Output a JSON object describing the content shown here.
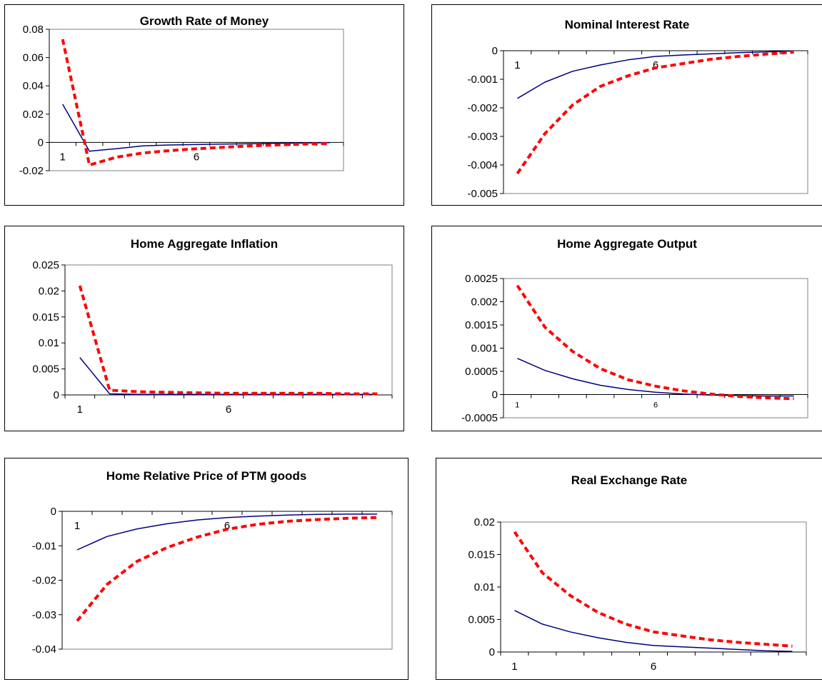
{
  "colors": {
    "solid": "#000080",
    "dashed": "#ff0000",
    "axis": "#000000",
    "plot_border": "#808080"
  },
  "chart_data": [
    {
      "type": "line",
      "title": "Growth Rate of Money",
      "x": [
        1,
        2,
        3,
        4,
        5,
        6,
        7,
        8,
        9,
        10,
        11
      ],
      "category_labels": [
        {
          "x": 1,
          "text": "1"
        },
        {
          "x": 6,
          "text": "6"
        }
      ],
      "ylim": [
        -0.02,
        0.08
      ],
      "yticks": [
        "0.08",
        "0.06",
        "0.04",
        "0.02",
        "0",
        "-0.02"
      ],
      "series": [
        {
          "style": "solid",
          "values": [
            0.027,
            -0.0062,
            -0.0045,
            -0.0025,
            -0.0018,
            -0.0015,
            -0.0012,
            -0.0009,
            -0.0006,
            -0.0004,
            -0.0002
          ]
        },
        {
          "style": "dashed",
          "values": [
            0.073,
            -0.016,
            -0.0105,
            -0.0075,
            -0.0058,
            -0.0045,
            -0.0035,
            -0.0025,
            -0.0018,
            -0.0012,
            -0.0008
          ]
        }
      ],
      "grid": false
    },
    {
      "type": "line",
      "title": "Nominal Interest Rate",
      "x": [
        1,
        2,
        3,
        4,
        5,
        6,
        7,
        8,
        9,
        10,
        11
      ],
      "category_labels": [
        {
          "x": 1,
          "text": "1"
        },
        {
          "x": 6,
          "text": "6"
        }
      ],
      "ylim": [
        -0.005,
        0
      ],
      "yticks": [
        "0",
        "-0.001",
        "-0.002",
        "-0.003",
        "-0.004",
        "-0.005"
      ],
      "series": [
        {
          "style": "solid",
          "values": [
            -0.00167,
            -0.0011,
            -0.00072,
            -0.0005,
            -0.00032,
            -0.0002,
            -0.00015,
            -0.00011,
            -7e-05,
            -4e-05,
            -1e-05
          ]
        },
        {
          "style": "dashed",
          "values": [
            -0.0043,
            -0.0029,
            -0.0019,
            -0.00125,
            -0.00088,
            -0.0006,
            -0.00045,
            -0.0003,
            -0.0002,
            -0.00012,
            -5e-05
          ]
        }
      ],
      "grid": false
    },
    {
      "type": "line",
      "title": "Home Aggregate Inflation",
      "x": [
        1,
        2,
        3,
        4,
        5,
        6,
        7,
        8,
        9,
        10,
        11
      ],
      "category_labels": [
        {
          "x": 1,
          "text": "1"
        },
        {
          "x": 6,
          "text": "6"
        }
      ],
      "ylim": [
        0,
        0.025
      ],
      "yticks": [
        "0.025",
        "0.02",
        "0.015",
        "0.01",
        "0.005",
        "0"
      ],
      "series": [
        {
          "style": "solid",
          "values": [
            0.0072,
            0.0002,
            0.0001,
            0.0001,
            0.0001,
            0.0001,
            0.0001,
            0.0001,
            0.0001,
            0.0001,
            0.0001
          ]
        },
        {
          "style": "dashed",
          "values": [
            0.021,
            0.0009,
            0.0006,
            0.0005,
            0.0004,
            0.0003,
            0.0003,
            0.0003,
            0.0003,
            0.0002,
            0.0002
          ]
        }
      ],
      "grid": false
    },
    {
      "type": "line",
      "title": "Home Aggregate Output",
      "x": [
        1,
        2,
        3,
        4,
        5,
        6,
        7,
        8,
        9,
        10,
        11
      ],
      "category_labels": [
        {
          "x": 1,
          "text": "1"
        },
        {
          "x": 6,
          "text": "6"
        }
      ],
      "category_label_size": "small",
      "ylim": [
        -0.0005,
        0.0025
      ],
      "yticks": [
        "0.0025",
        "0.002",
        "0.0015",
        "0.001",
        "0.0005",
        "0",
        "-0.0005"
      ],
      "series": [
        {
          "style": "solid",
          "values": [
            0.00078,
            0.00052,
            0.00034,
            0.0002,
            0.00011,
            5e-05,
            1e-05,
            -1e-05,
            -2e-05,
            -3e-05,
            -3e-05
          ]
        },
        {
          "style": "dashed",
          "values": [
            0.00235,
            0.00145,
            0.00093,
            0.00056,
            0.00032,
            0.00018,
            8e-05,
            1e-05,
            -4e-05,
            -7e-05,
            -9e-05
          ]
        }
      ],
      "grid": false
    },
    {
      "type": "line",
      "title": "Home Relative Price of PTM goods",
      "x": [
        1,
        2,
        3,
        4,
        5,
        6,
        7,
        8,
        9,
        10,
        11
      ],
      "category_labels": [
        {
          "x": 1,
          "text": "1"
        },
        {
          "x": 6,
          "text": "6"
        }
      ],
      "ylim": [
        -0.04,
        0
      ],
      "yticks": [
        "0",
        "-0.01",
        "-0.02",
        "-0.03",
        "-0.04"
      ],
      "series": [
        {
          "style": "solid",
          "values": [
            -0.0112,
            -0.0073,
            -0.0051,
            -0.0036,
            -0.0025,
            -0.0018,
            -0.0014,
            -0.0011,
            -0.0009,
            -0.0008,
            -0.0008
          ]
        },
        {
          "style": "dashed",
          "values": [
            -0.0318,
            -0.0212,
            -0.0145,
            -0.0105,
            -0.0075,
            -0.0052,
            -0.0038,
            -0.0029,
            -0.0024,
            -0.002,
            -0.0018
          ]
        }
      ],
      "grid": false
    },
    {
      "type": "line",
      "title": "Real Exchange Rate",
      "x": [
        1,
        2,
        3,
        4,
        5,
        6,
        7,
        8,
        9,
        10,
        11
      ],
      "category_labels": [
        {
          "x": 1,
          "text": "1"
        },
        {
          "x": 6,
          "text": "6"
        }
      ],
      "ylim": [
        0,
        0.02
      ],
      "yticks": [
        "0.02",
        "0.015",
        "0.01",
        "0.005",
        "0"
      ],
      "series": [
        {
          "style": "solid",
          "values": [
            0.0064,
            0.0043,
            0.0031,
            0.0022,
            0.0015,
            0.001,
            0.0008,
            0.0006,
            0.0004,
            0.0002,
            0.0001
          ]
        },
        {
          "style": "dashed",
          "values": [
            0.0185,
            0.0122,
            0.0087,
            0.0061,
            0.0043,
            0.0031,
            0.0025,
            0.0019,
            0.0015,
            0.0012,
            0.0009
          ]
        }
      ],
      "grid": false
    }
  ]
}
